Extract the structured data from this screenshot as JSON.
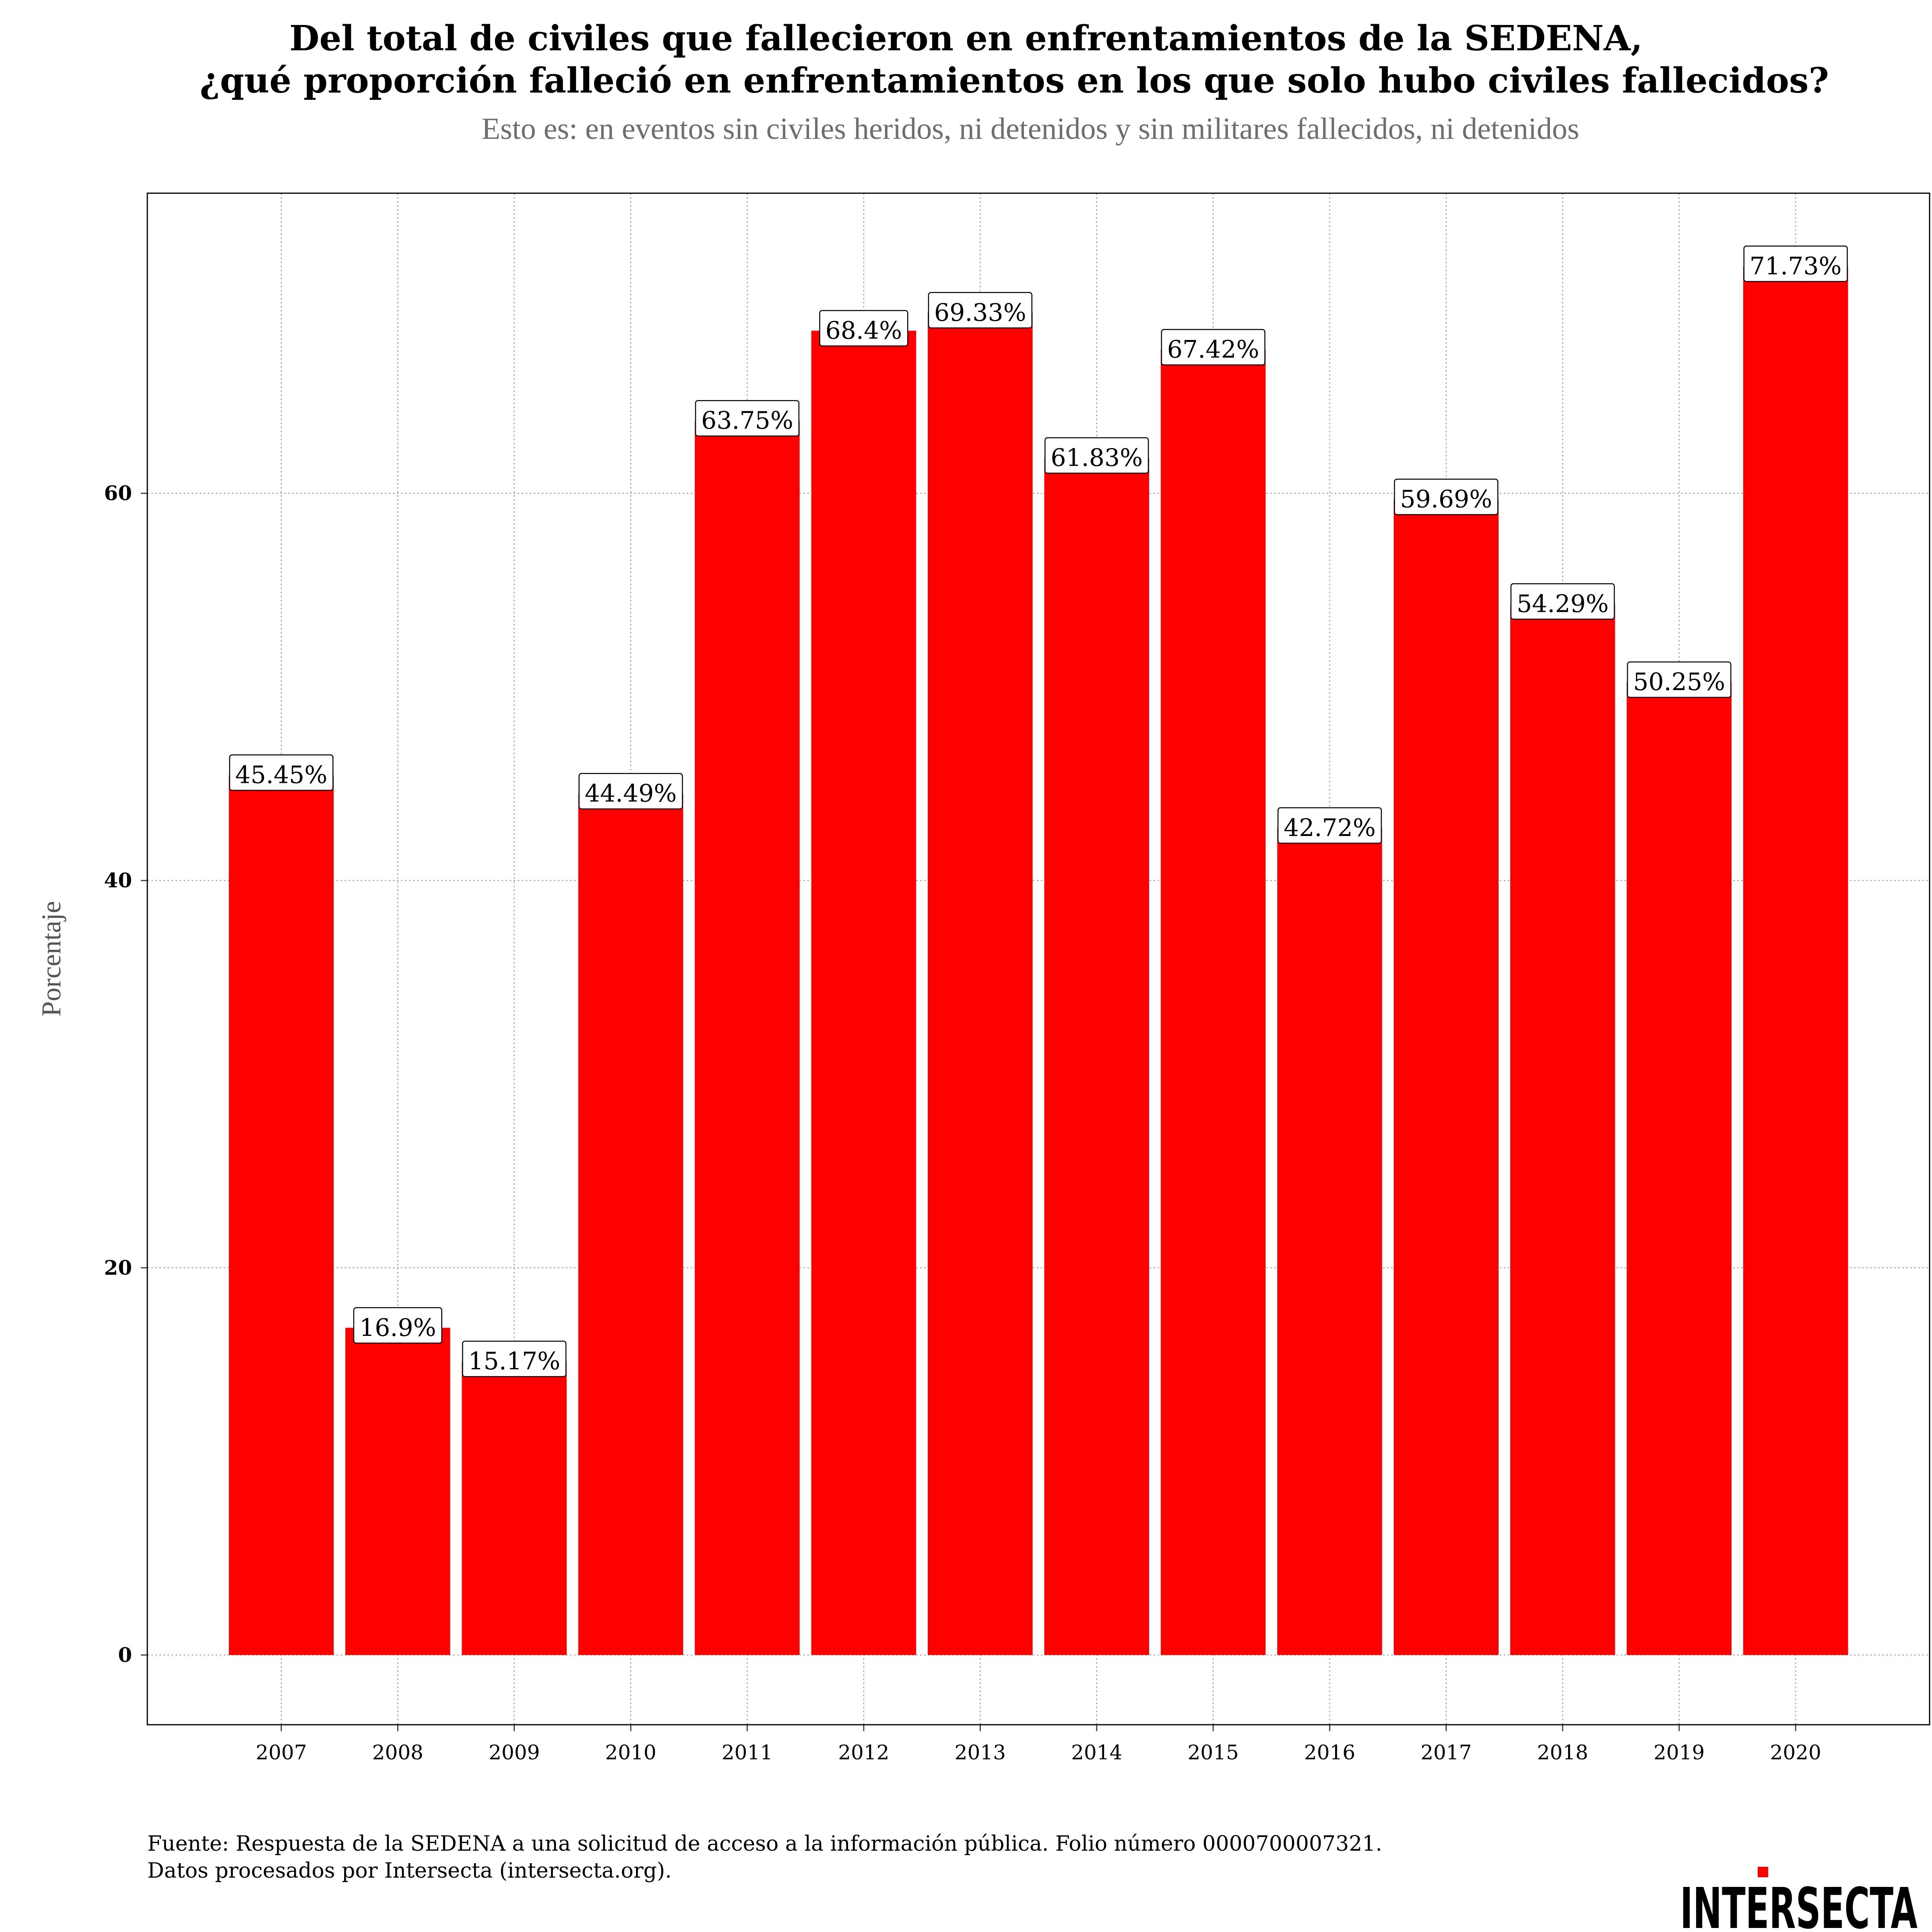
{
  "header": {
    "title_line1": "Del total de civiles que fallecieron en enfrentamientos de la SEDENA,",
    "title_line2": "¿qué proporción falleció en enfrentamientos en los que solo hubo civiles fallecidos?",
    "subtitle": "Esto es: en eventos sin civiles heridos, ni detenidos y sin militares fallecidos, ni detenidos"
  },
  "footer": {
    "caption_line1": "Fuente: Respuesta de la SEDENA a una solicitud de acceso a la información pública. Folio número 0000700007321.",
    "caption_line2": "Datos procesados por Intersecta (intersecta.org).",
    "logo_text": "INTERSECTA",
    "logo_accent_color": "#ff0000"
  },
  "chart_data": {
    "type": "bar",
    "title": "Del total de civiles que fallecieron en enfrentamientos de la SEDENA, ¿qué proporción falleció en enfrentamientos en los que solo hubo civiles fallecidos?",
    "subtitle": "Esto es: en eventos sin civiles heridos, ni detenidos y sin militares fallecidos, ni detenidos",
    "xlabel": "",
    "ylabel": "Porcentaje",
    "categories": [
      "2007",
      "2008",
      "2009",
      "2010",
      "2011",
      "2012",
      "2013",
      "2014",
      "2015",
      "2016",
      "2017",
      "2018",
      "2019",
      "2020"
    ],
    "values": [
      45.45,
      16.9,
      15.17,
      44.49,
      63.75,
      68.4,
      69.33,
      61.83,
      67.42,
      42.72,
      59.69,
      54.29,
      50.25,
      71.73
    ],
    "labels": [
      "45.45%",
      "16.9%",
      "15.17%",
      "44.49%",
      "63.75%",
      "68.4%",
      "69.33%",
      "61.83%",
      "67.42%",
      "42.72%",
      "59.69%",
      "54.29%",
      "50.25%",
      "71.73%"
    ],
    "yticks": [
      0,
      20,
      40,
      60
    ],
    "ylim": [
      -3.6,
      75.5
    ],
    "bar_color": "#ff0000",
    "grid": true,
    "legend": "none"
  }
}
